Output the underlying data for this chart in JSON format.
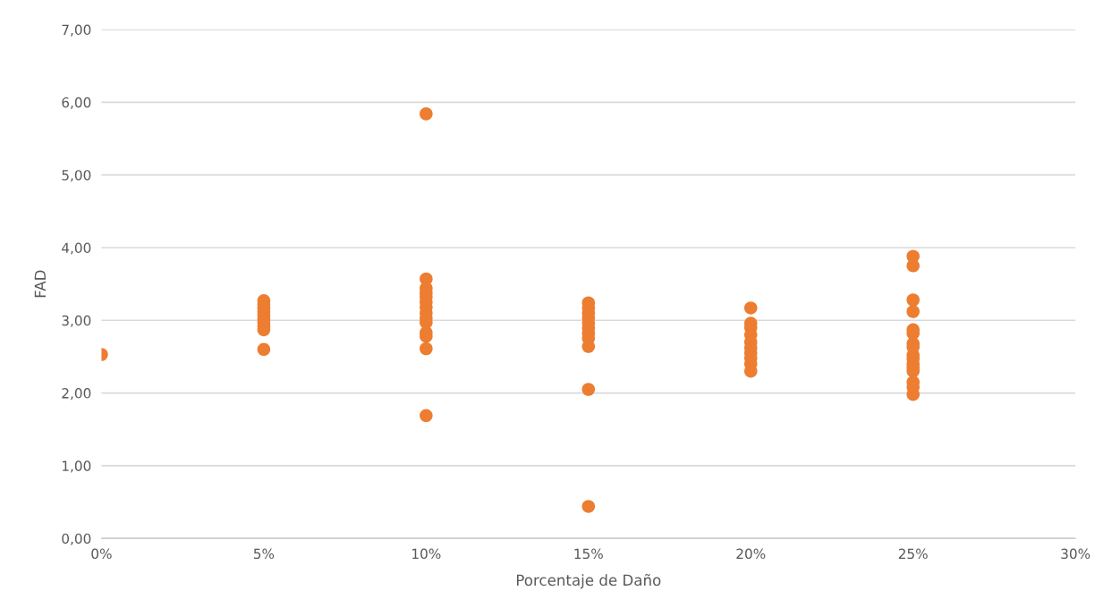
{
  "chart_data": {
    "type": "scatter",
    "xlabel": "Porcentaje de Daño",
    "ylabel": "FAD",
    "marker": "circle",
    "grid": "y",
    "xlim": [
      0,
      30
    ],
    "ylim": [
      0,
      7
    ],
    "xticks": [
      {
        "value": 0,
        "label": "0%"
      },
      {
        "value": 5,
        "label": "5%"
      },
      {
        "value": 10,
        "label": "10%"
      },
      {
        "value": 15,
        "label": "15%"
      },
      {
        "value": 20,
        "label": "20%"
      },
      {
        "value": 25,
        "label": "25%"
      },
      {
        "value": 30,
        "label": "30%"
      }
    ],
    "yticks": [
      {
        "value": 0,
        "label": "0,00"
      },
      {
        "value": 1,
        "label": "1,00"
      },
      {
        "value": 2,
        "label": "2,00"
      },
      {
        "value": 3,
        "label": "3,00"
      },
      {
        "value": 4,
        "label": "4,00"
      },
      {
        "value": 5,
        "label": "5,00"
      },
      {
        "value": 6,
        "label": "6,00"
      },
      {
        "value": 7,
        "label": "7,00"
      }
    ],
    "series": [
      {
        "color": "#ed7d31",
        "x": [
          0,
          5,
          5,
          5,
          5,
          5,
          5,
          5,
          5,
          5,
          5,
          10,
          10,
          10,
          10,
          10,
          10,
          10,
          10,
          10,
          10,
          10,
          10,
          10,
          10,
          15,
          15,
          15,
          15,
          15,
          15,
          15,
          15,
          15,
          15,
          15,
          20,
          20,
          20,
          20,
          20,
          20,
          20,
          20,
          20,
          20,
          25,
          25,
          25,
          25,
          25,
          25,
          25,
          25,
          25,
          25,
          25,
          25,
          25,
          25,
          25,
          25
        ],
        "values": [
          2.53,
          3.27,
          3.22,
          3.17,
          3.12,
          3.07,
          3.02,
          2.97,
          2.92,
          2.87,
          2.6,
          5.84,
          3.57,
          3.44,
          3.38,
          3.32,
          3.25,
          3.18,
          3.1,
          3.03,
          2.97,
          2.83,
          2.78,
          2.61,
          1.69,
          3.24,
          3.17,
          3.1,
          3.03,
          2.96,
          2.89,
          2.82,
          2.75,
          2.64,
          2.05,
          0.44,
          3.17,
          2.96,
          2.9,
          2.8,
          2.7,
          2.62,
          2.55,
          2.48,
          2.4,
          2.3,
          3.88,
          3.75,
          3.28,
          3.12,
          2.87,
          2.82,
          2.68,
          2.63,
          2.52,
          2.47,
          2.4,
          2.35,
          2.3,
          2.15,
          2.08,
          1.98
        ]
      }
    ]
  }
}
